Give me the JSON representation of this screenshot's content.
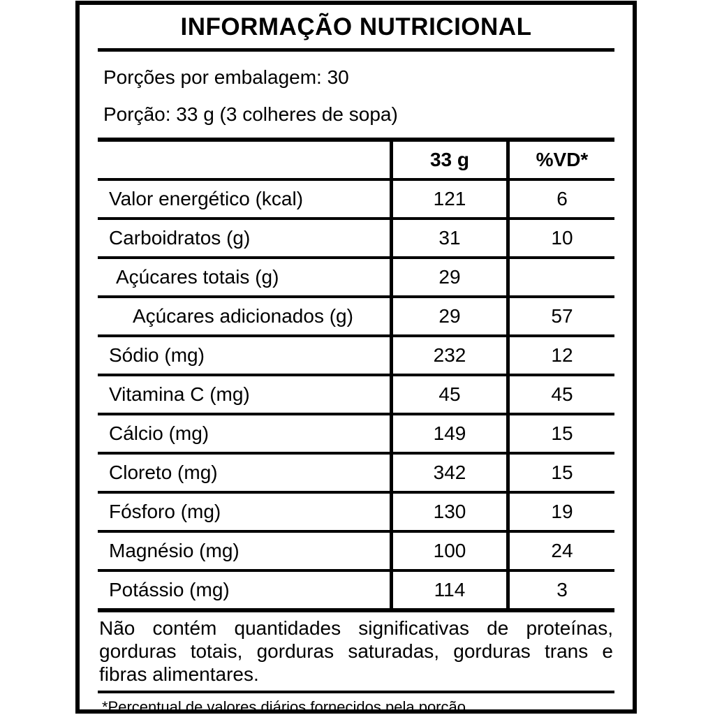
{
  "label": {
    "title": "INFORMAÇÃO NUTRICIONAL",
    "servings_per_package": "Porções por embalagem: 30",
    "serving_size": "Porção: 33 g (3 colheres de sopa)",
    "table": {
      "col_nutrient": "",
      "col_amount": "33 g",
      "col_dv": "%VD*",
      "rows": [
        {
          "nutrient": "Valor energético (kcal)",
          "amount": "121",
          "dv": "6"
        },
        {
          "nutrient": "Carboidratos (g)",
          "amount": "31",
          "dv": "10"
        },
        {
          "nutrient": "Açúcares totais (g)",
          "amount": "29",
          "dv": ""
        },
        {
          "nutrient": "Açúcares adicionados (g)",
          "amount": "29",
          "dv": "57"
        },
        {
          "nutrient": "Sódio (mg)",
          "amount": "232",
          "dv": "12"
        },
        {
          "nutrient": "Vitamina C (mg)",
          "amount": "45",
          "dv": "45"
        },
        {
          "nutrient": "Cálcio (mg)",
          "amount": "149",
          "dv": "15"
        },
        {
          "nutrient": "Cloreto (mg)",
          "amount": "342",
          "dv": "15"
        },
        {
          "nutrient": "Fósforo (mg)",
          "amount": "130",
          "dv": "19"
        },
        {
          "nutrient": "Magnésio (mg)",
          "amount": "100",
          "dv": "24"
        },
        {
          "nutrient": "Potássio (mg)",
          "amount": "114",
          "dv": "3"
        }
      ]
    },
    "footer_note": "Não contém quantidades significativas de proteínas, gorduras totais, gorduras saturadas, gorduras trans e fibras alimentares.",
    "footnote": "*Percentual de valores diários fornecidos pela porção.",
    "colors": {
      "border": "#000000",
      "background": "#ffffff",
      "text": "#000000"
    }
  }
}
